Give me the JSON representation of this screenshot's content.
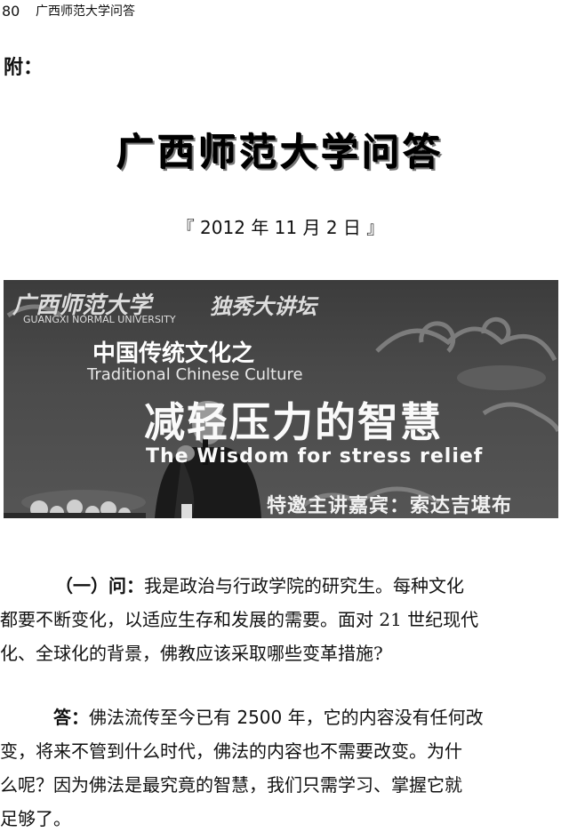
{
  "header": {
    "page_number": "80",
    "book_title": "广西师范大学问答"
  },
  "appendix_label": "附：",
  "title": "广西师范大学问答",
  "date": "『 2012 年 11 月 2 日 』",
  "photo": {
    "university": "广西师范大学",
    "university_en": "GUANGXI NORMAL UNIVERSITY",
    "forum": "独秀大讲坛",
    "series": "中国传统文化之",
    "series_en": "Traditional Chinese Culture",
    "theme": "减轻压力的智慧",
    "theme_en": "The Wisdom for stress relief",
    "guest": "特邀主讲嘉宾：索达吉堪布"
  },
  "question": {
    "label": "（一）问：",
    "lines": [
      "我是政治与行政学院的研究生。每种文化",
      "都要不断变化，以适应生存和发展的需要。面对 21 世纪现代",
      "化、全球化的背景，佛教应该采取哪些变革措施?"
    ]
  },
  "answer": {
    "label": "答：",
    "lines": [
      "佛法流传至今已有 2500 年，它的内容没有任何改",
      "变，将来不管到什么时代，佛法的内容也不需要改变。为什",
      "么呢？因为佛法是最究竟的智慧，我们只需学习、掌握它就",
      "足够了。"
    ]
  }
}
